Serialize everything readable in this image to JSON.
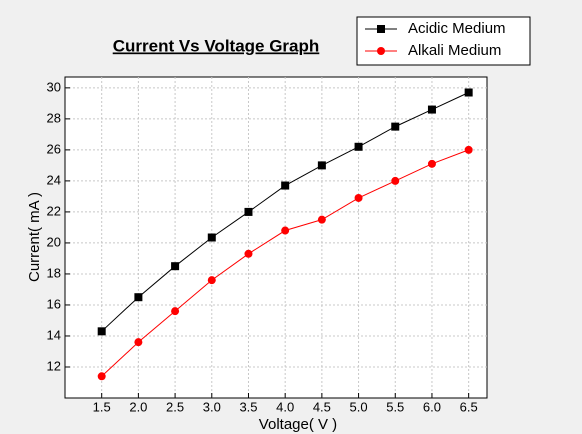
{
  "chart_data": {
    "type": "line",
    "title": "Current Vs Voltage Graph",
    "x_label": "Voltage( V )",
    "y_label": "Current( mA )",
    "x": [
      1.5,
      2.0,
      2.5,
      3.0,
      3.5,
      4.0,
      4.5,
      5.0,
      5.5,
      6.0,
      6.5
    ],
    "xlim": [
      1.0,
      6.75
    ],
    "xticks": [
      {
        "value": 1.5,
        "label": "1.5"
      },
      {
        "value": 2.0,
        "label": "2.0"
      },
      {
        "value": 2.5,
        "label": "2.5"
      },
      {
        "value": 3.0,
        "label": "3.0"
      },
      {
        "value": 3.5,
        "label": "3.5"
      },
      {
        "value": 4.0,
        "label": "4.0"
      },
      {
        "value": 4.5,
        "label": "4.5"
      },
      {
        "value": 5.0,
        "label": "5.0"
      },
      {
        "value": 5.5,
        "label": "5.5"
      },
      {
        "value": 6.0,
        "label": "6.0"
      },
      {
        "value": 6.5,
        "label": "6.5"
      }
    ],
    "ylim": [
      10,
      30.7
    ],
    "yticks": [
      12,
      14,
      16,
      18,
      20,
      22,
      24,
      26,
      28,
      30
    ],
    "grid": true,
    "legend": "top-right",
    "series": [
      {
        "name": "Acidic Medium",
        "color": "#000000",
        "marker": "square",
        "values": [
          14.3,
          16.5,
          18.5,
          20.35,
          22,
          23.7,
          25,
          26.2,
          27.5,
          28.6,
          29.7
        ]
      },
      {
        "name": "Alkali Medium",
        "color": "#ff0000",
        "marker": "circle",
        "values": [
          11.4,
          13.6,
          15.6,
          17.6,
          19.3,
          20.8,
          21.5,
          22.9,
          24,
          25.1,
          26
        ]
      }
    ]
  }
}
